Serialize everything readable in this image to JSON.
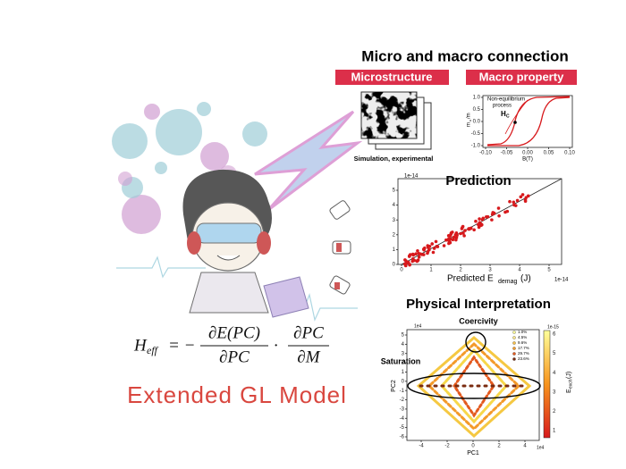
{
  "header": {
    "title": "Micro and macro connection",
    "microstructure": "Microstructure",
    "macro_property": "Macro property",
    "caption": "Simulation, experimental"
  },
  "hysteresis": {
    "annotation_1": "Non-equilibrium",
    "annotation_2": "process",
    "hc": "H",
    "hc_sub": "C",
    "xlabel": "B(T)",
    "ylabel": "m",
    "ylabel_sub": "x",
    "ylabel_tail": "/m",
    "xticks": [
      "-0.10",
      "-0.05",
      "0.00",
      "0.05",
      "0.10"
    ],
    "yticks": [
      "1.0",
      "0.5",
      "0.0",
      "-0.5",
      "-1.0"
    ]
  },
  "prediction": {
    "title": "Prediction",
    "xlabel": "Predicted E",
    "xlabel_sub": "demag",
    "xlabel_tail": " (J)",
    "scale_x": "1e-14",
    "scale_y": "1e-14",
    "xticks": [
      "0",
      "1",
      "2",
      "3",
      "4",
      "5"
    ],
    "yticks": [
      "0",
      "1",
      "2",
      "3",
      "4",
      "5"
    ]
  },
  "interpretation": {
    "title": "Physical Interpretation",
    "coercivity": "Coercivity",
    "saturation": "Saturation",
    "xlabel": "PC1",
    "ylabel": "PC2",
    "scale_x": "1e4",
    "scale_y": "1e4",
    "xticks": [
      "-4",
      "-2",
      "0",
      "2",
      "4"
    ],
    "yticks": [
      "5",
      "4",
      "3",
      "2",
      "1",
      "0",
      "-1",
      "-2",
      "-3",
      "-4",
      "-5",
      "-6"
    ],
    "legend": [
      "1.0%",
      "4.5%",
      "9.6%",
      "17.7%",
      "29.7%",
      "23.6%"
    ],
    "colorbar_label": "E",
    "colorbar_sub": "exch",
    "colorbar_tail": " (J)",
    "colorbar_scale": "1e-15",
    "colorbar_ticks": [
      "6",
      "5",
      "4",
      "3",
      "2",
      "1"
    ]
  },
  "formula": {
    "lhs": "H",
    "lhs_sub": "eff",
    "eq": "= −",
    "num1": "∂E(PC)",
    "den1": "∂PC",
    "dot": "·",
    "num2": "∂PC",
    "den2": "∂M"
  },
  "footer": {
    "model": "Extended GL Model"
  }
}
